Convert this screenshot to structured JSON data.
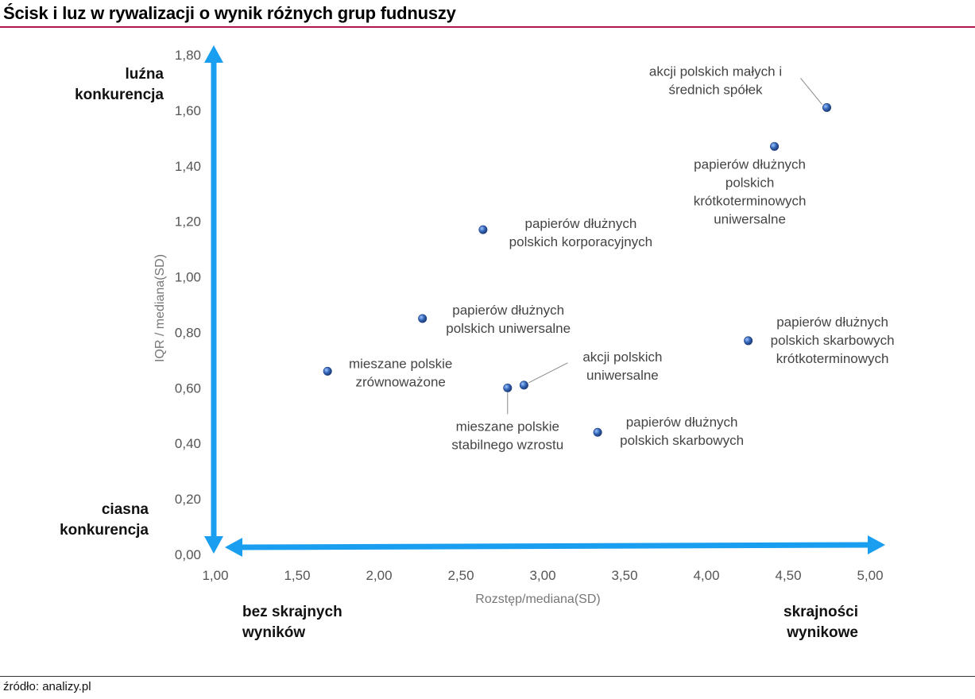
{
  "title": "Ścisk i luz w rywalizacji o wynik różnych grup fudnuszy",
  "source": "źródło: analizy.pl",
  "chart_data": {
    "type": "scatter",
    "xlabel": "Rozstęp/mediana(SD)",
    "ylabel": "IQR / mediana(SD)",
    "xlim": [
      1.0,
      5.0
    ],
    "ylim": [
      0.0,
      1.8
    ],
    "xticks": [
      "1,00",
      "1,50",
      "2,00",
      "2,50",
      "3,00",
      "3,50",
      "4,00",
      "4,50",
      "5,00"
    ],
    "yticks": [
      "0,00",
      "0,20",
      "0,40",
      "0,60",
      "0,80",
      "1,00",
      "1,20",
      "1,40",
      "1,60",
      "1,80"
    ],
    "points": [
      {
        "x": 4.75,
        "y": 1.61,
        "label": [
          "akcji polskich małych i",
          "średnich spółek"
        ]
      },
      {
        "x": 4.43,
        "y": 1.47,
        "label": [
          "papierów dłużnych",
          "polskich",
          "krótkoterminowych",
          "uniwersalne"
        ]
      },
      {
        "x": 2.65,
        "y": 1.17,
        "label": [
          "papierów dłużnych",
          "polskich korporacyjnych"
        ]
      },
      {
        "x": 2.28,
        "y": 0.85,
        "label": [
          "papierów dłużnych",
          "polskich uniwersalne"
        ]
      },
      {
        "x": 4.27,
        "y": 0.77,
        "label": [
          "papierów dłużnych",
          "polskich skarbowych",
          "krótkoterminowych"
        ]
      },
      {
        "x": 1.7,
        "y": 0.66,
        "label": [
          "mieszane polskie",
          "zrównoważone"
        ]
      },
      {
        "x": 2.9,
        "y": 0.61,
        "label": [
          "akcji polskich",
          "uniwersalne"
        ]
      },
      {
        "x": 2.8,
        "y": 0.6,
        "label": [
          "mieszane polskie",
          "stabilnego wzrostu"
        ]
      },
      {
        "x": 3.35,
        "y": 0.44,
        "label": [
          "papierów dłużnych",
          "polskich skarbowych"
        ]
      }
    ],
    "annotations": {
      "top_left": [
        "luźna",
        "konkurencja"
      ],
      "bottom_left": [
        "ciasna",
        "konkurencja"
      ],
      "x_left": [
        "bez skrajnych",
        "wyników"
      ],
      "x_right": [
        "skrajności",
        "wynikowe"
      ]
    },
    "colors": {
      "arrow": "#1a9ff0",
      "point": "#2f5fa8",
      "title_rule": "#b0174f"
    },
    "grid": false,
    "legend": "none"
  }
}
